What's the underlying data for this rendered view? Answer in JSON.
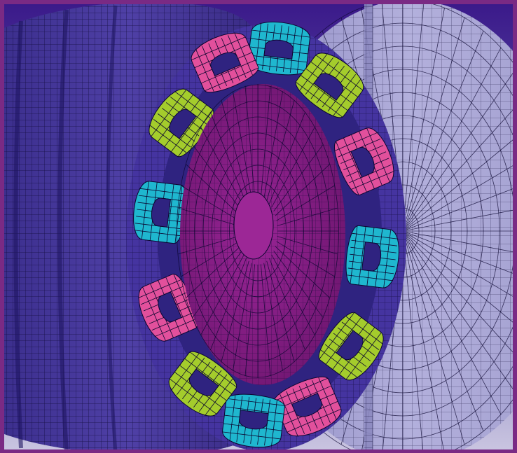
{
  "scene": {
    "subject": "motor-fe-mesh",
    "colors": {
      "frame_border": "#7a2a84",
      "background_top": "#3b1a8a",
      "background_bottom": "#c9c4e0",
      "stator_body": "#4a3a9e",
      "stator_shade": "#3a2c86",
      "mesh_line": "#0b0630",
      "end_cap": "#a9a6d2",
      "end_cap_light": "#c3c1e3",
      "rotor": "#8c1f88",
      "rotor_face": "#7d1a7c",
      "coil_pink": "#e2509c",
      "coil_cyan": "#1fb7cf",
      "coil_green": "#a4cc2c",
      "shaft": "#b7b5de"
    },
    "coils": [
      {
        "id": "coil-1",
        "color": "coil_cyan"
      },
      {
        "id": "coil-2",
        "color": "coil_green"
      },
      {
        "id": "coil-3",
        "color": "coil_pink"
      },
      {
        "id": "coil-4",
        "color": "coil_cyan"
      },
      {
        "id": "coil-5",
        "color": "coil_green"
      },
      {
        "id": "coil-6",
        "color": "coil_pink"
      },
      {
        "id": "coil-7",
        "color": "coil_cyan"
      },
      {
        "id": "coil-8",
        "color": "coil_green"
      },
      {
        "id": "coil-9",
        "color": "coil_pink"
      },
      {
        "id": "coil-10",
        "color": "coil_cyan"
      },
      {
        "id": "coil-11",
        "color": "coil_green"
      },
      {
        "id": "coil-12",
        "color": "coil_pink"
      }
    ]
  }
}
